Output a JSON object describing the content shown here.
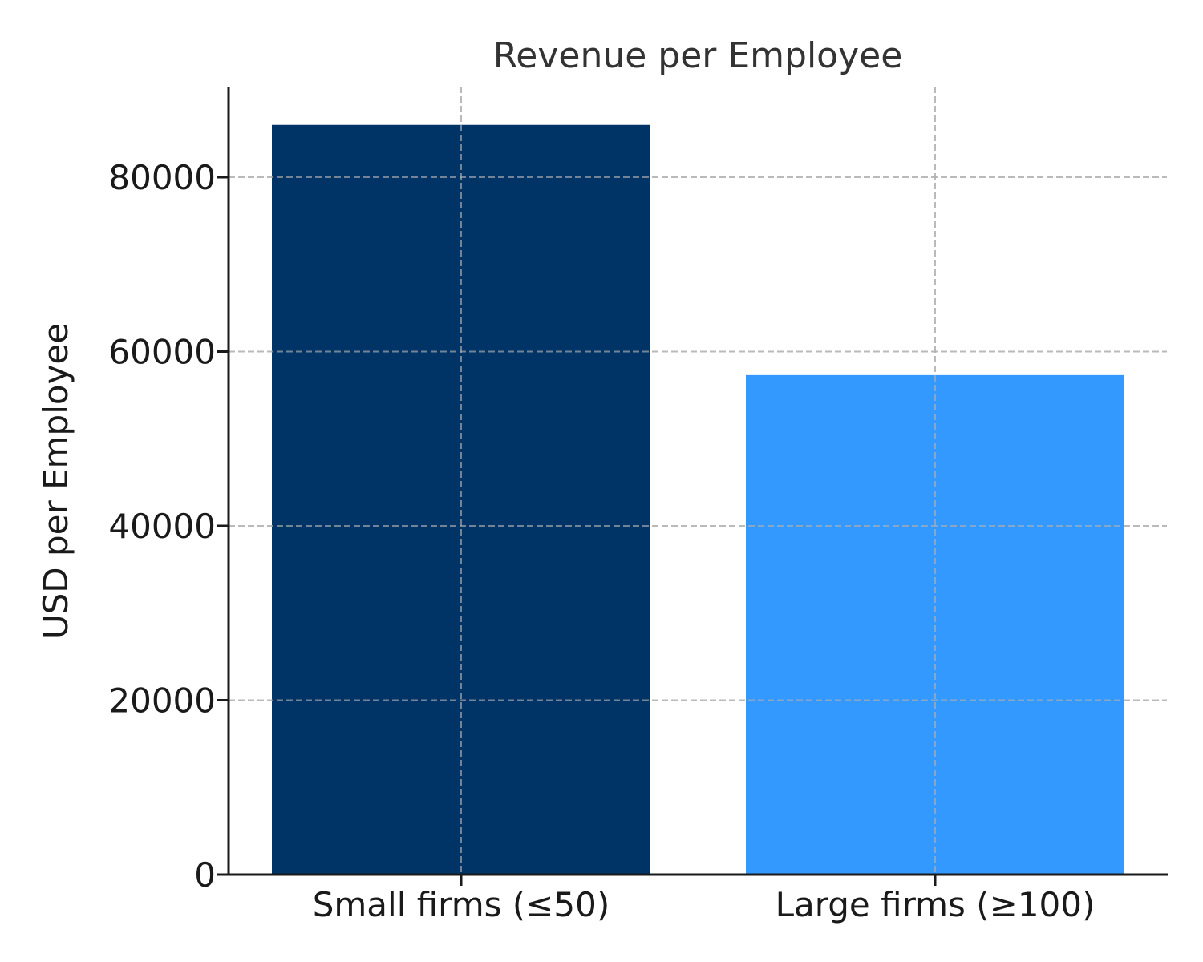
{
  "chart_data": {
    "type": "bar",
    "title": "Revenue per Employee",
    "xlabel": "",
    "ylabel": "USD per Employee",
    "categories": [
      "Small firms (≤50)",
      "Large firms (≥100)"
    ],
    "values": [
      86000,
      57300
    ],
    "colors": [
      "#003366",
      "#3399ff"
    ],
    "ylim": [
      0,
      90000
    ],
    "yticks": [
      0,
      20000,
      40000,
      60000,
      80000
    ],
    "ytick_labels": [
      "0",
      "20000",
      "40000",
      "60000",
      "80000"
    ],
    "grid": true,
    "legend": null
  }
}
